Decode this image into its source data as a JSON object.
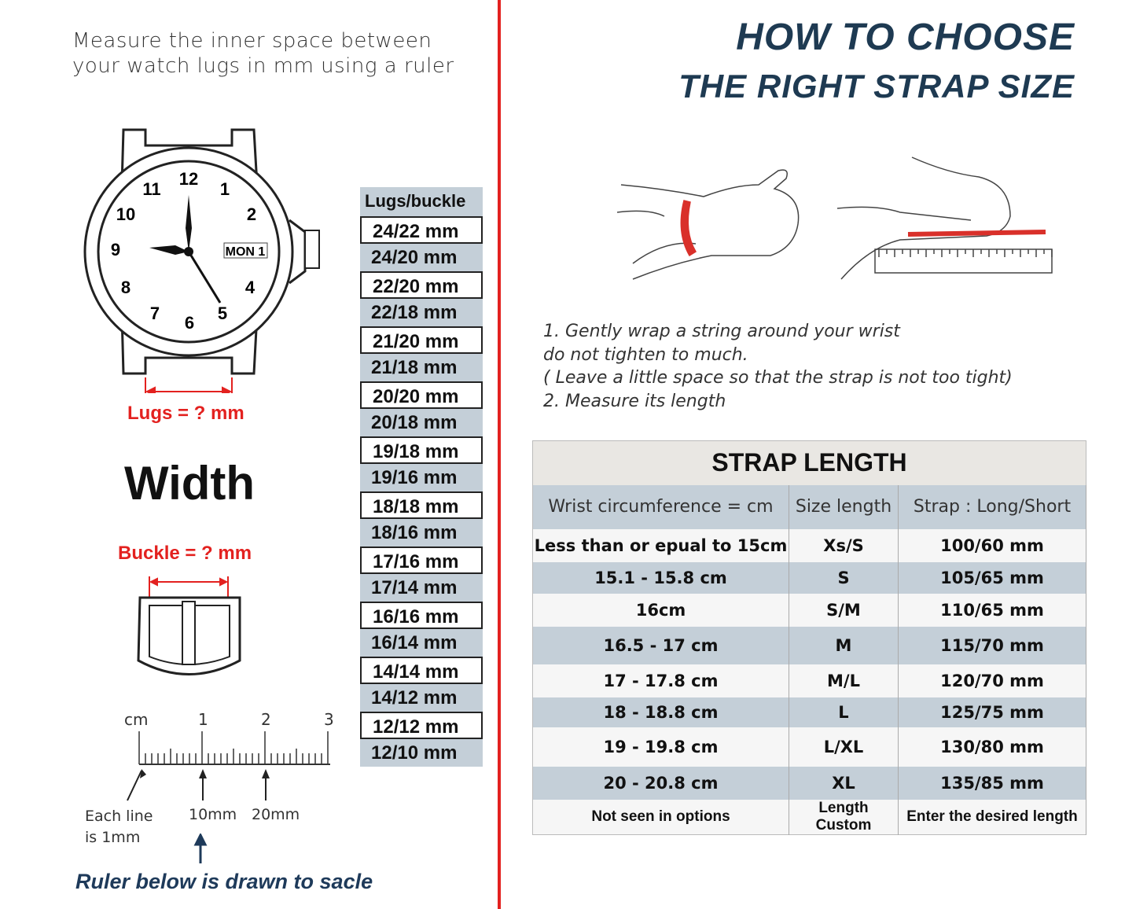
{
  "left": {
    "intro": [
      "Measure the inner space between",
      "your watch lugs in mm using a ruler"
    ],
    "watch": {
      "numbers": [
        "12",
        "1",
        "2",
        "4",
        "5",
        "6",
        "7",
        "8",
        "9",
        "10",
        "11"
      ],
      "date_window": "MON 1"
    },
    "lugs_label": "Lugs = ? mm",
    "width_label": "Width",
    "buckle_label": "Buckle = ? mm",
    "lugs_table": {
      "header": "Lugs/buckle",
      "rows": [
        "24/22 mm",
        "24/20 mm",
        "22/20 mm",
        "22/18 mm",
        "21/20 mm",
        "21/18 mm",
        "20/20 mm",
        "20/18 mm",
        "19/18 mm",
        "19/16 mm",
        "18/18 mm",
        "18/16 mm",
        "17/16 mm",
        "17/14 mm",
        "16/16 mm",
        "16/14 mm",
        "14/14 mm",
        "14/12 mm",
        "12/12 mm",
        "12/10 mm"
      ]
    },
    "ruler": {
      "unit": "cm",
      "ticks": [
        "1",
        "2",
        "3"
      ],
      "note_each": [
        "Each line",
        "is 1mm"
      ],
      "note_10": "10mm",
      "note_20": "20mm"
    },
    "ruler_note": "Ruler below is drawn to sacle"
  },
  "right": {
    "title": [
      "HOW TO CHOOSE",
      "THE RIGHT STRAP SIZE"
    ],
    "steps": [
      "1.  Gently wrap a string around your wrist",
      "do not tighten to much.",
      "( Leave a little space so that the strap is not too tight)",
      "2. Measure its length"
    ],
    "strap_table": {
      "caption": "STRAP LENGTH",
      "headers": [
        "Wrist circumference = cm",
        "Size length",
        "Strap : Long/Short"
      ],
      "rows": [
        [
          "Less than or epual to 15cm",
          "Xs/S",
          "100/60 mm"
        ],
        [
          "15.1 - 15.8 cm",
          "S",
          "105/65 mm"
        ],
        [
          "16cm",
          "S/M",
          "110/65 mm"
        ],
        [
          "16.5 - 17 cm",
          "M",
          "115/70 mm"
        ],
        [
          "17 - 17.8 cm",
          "M/L",
          "120/70 mm"
        ],
        [
          "18 - 18.8 cm",
          "L",
          "125/75 mm"
        ],
        [
          "19 - 19.8 cm",
          "L/XL",
          "130/80 mm"
        ],
        [
          "20 - 20.8 cm",
          "XL",
          "135/85 mm"
        ],
        [
          "Not seen in options",
          "Length Custom",
          "Enter the desired length"
        ]
      ]
    }
  },
  "colors": {
    "accent_red": "#e3211f",
    "title_navy": "#1e3a52",
    "row_blue": "#c4cfd8"
  }
}
